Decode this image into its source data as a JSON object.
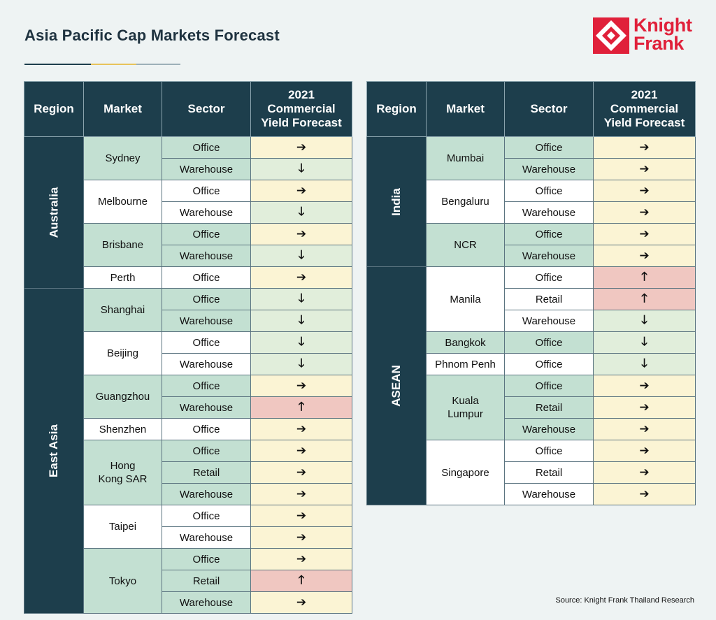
{
  "title": "Asia Pacific Cap Markets Forecast",
  "source": "Source: Knight Frank Thailand Research",
  "logo": {
    "line1": "Knight",
    "line2": "Frank",
    "name": "knight-frank-logo"
  },
  "colors": {
    "header_bg": "#1d3e4c",
    "brand_red": "#e0203a",
    "market_green": "#c3e0d2",
    "cell_stable": "#fbf4d4",
    "cell_compress": "#e1eedb",
    "cell_expand": "#f0c7c1",
    "rule": [
      "#1d3e4c",
      "#e8c35a",
      "#9db0b8"
    ]
  },
  "chart_data": {
    "type": "table",
    "columns": [
      "Region",
      "Market",
      "Sector",
      "2021 Commercial Yield Forecast"
    ],
    "symbols": {
      "stable": "➔",
      "compress": "🡓",
      "expand": "🡑"
    },
    "tables": [
      {
        "regions": [
          {
            "name": "Australia",
            "markets": [
              {
                "name": "Sydney",
                "rows": [
                  {
                    "sector": "Office",
                    "forecast": "stable"
                  },
                  {
                    "sector": "Warehouse",
                    "forecast": "compress"
                  }
                ]
              },
              {
                "name": "Melbourne",
                "rows": [
                  {
                    "sector": "Office",
                    "forecast": "stable"
                  },
                  {
                    "sector": "Warehouse",
                    "forecast": "compress"
                  }
                ]
              },
              {
                "name": "Brisbane",
                "rows": [
                  {
                    "sector": "Office",
                    "forecast": "stable"
                  },
                  {
                    "sector": "Warehouse",
                    "forecast": "compress"
                  }
                ]
              },
              {
                "name": "Perth",
                "rows": [
                  {
                    "sector": "Office",
                    "forecast": "stable"
                  }
                ]
              }
            ]
          },
          {
            "name": "East Asia",
            "markets": [
              {
                "name": "Shanghai",
                "rows": [
                  {
                    "sector": "Office",
                    "forecast": "compress"
                  },
                  {
                    "sector": "Warehouse",
                    "forecast": "compress"
                  }
                ]
              },
              {
                "name": "Beijing",
                "rows": [
                  {
                    "sector": "Office",
                    "forecast": "compress"
                  },
                  {
                    "sector": "Warehouse",
                    "forecast": "compress"
                  }
                ]
              },
              {
                "name": "Guangzhou",
                "rows": [
                  {
                    "sector": "Office",
                    "forecast": "stable"
                  },
                  {
                    "sector": "Warehouse",
                    "forecast": "expand"
                  }
                ]
              },
              {
                "name": "Shenzhen",
                "rows": [
                  {
                    "sector": "Office",
                    "forecast": "stable"
                  }
                ]
              },
              {
                "name": "Hong Kong SAR",
                "rows": [
                  {
                    "sector": "Office",
                    "forecast": "stable"
                  },
                  {
                    "sector": "Retail",
                    "forecast": "stable"
                  },
                  {
                    "sector": "Warehouse",
                    "forecast": "stable"
                  }
                ]
              },
              {
                "name": "Taipei",
                "rows": [
                  {
                    "sector": "Office",
                    "forecast": "stable"
                  },
                  {
                    "sector": "Warehouse",
                    "forecast": "stable"
                  }
                ]
              },
              {
                "name": "Tokyo",
                "rows": [
                  {
                    "sector": "Office",
                    "forecast": "stable"
                  },
                  {
                    "sector": "Retail",
                    "forecast": "expand"
                  },
                  {
                    "sector": "Warehouse",
                    "forecast": "stable"
                  }
                ]
              }
            ]
          }
        ]
      },
      {
        "regions": [
          {
            "name": "India",
            "markets": [
              {
                "name": "Mumbai",
                "rows": [
                  {
                    "sector": "Office",
                    "forecast": "stable"
                  },
                  {
                    "sector": "Warehouse",
                    "forecast": "stable"
                  }
                ]
              },
              {
                "name": "Bengaluru",
                "rows": [
                  {
                    "sector": "Office",
                    "forecast": "stable"
                  },
                  {
                    "sector": "Warehouse",
                    "forecast": "stable"
                  }
                ]
              },
              {
                "name": "NCR",
                "rows": [
                  {
                    "sector": "Office",
                    "forecast": "stable"
                  },
                  {
                    "sector": "Warehouse",
                    "forecast": "stable"
                  }
                ]
              }
            ]
          },
          {
            "name": "ASEAN",
            "markets": [
              {
                "name": "Manila",
                "rows": [
                  {
                    "sector": "Office",
                    "forecast": "expand"
                  },
                  {
                    "sector": "Retail",
                    "forecast": "expand"
                  },
                  {
                    "sector": "Warehouse",
                    "forecast": "compress"
                  }
                ]
              },
              {
                "name": "Bangkok",
                "rows": [
                  {
                    "sector": "Office",
                    "forecast": "compress"
                  }
                ]
              },
              {
                "name": "Phnom Penh",
                "rows": [
                  {
                    "sector": "Office",
                    "forecast": "compress"
                  }
                ]
              },
              {
                "name": "Kuala Lumpur",
                "rows": [
                  {
                    "sector": "Office",
                    "forecast": "stable"
                  },
                  {
                    "sector": "Retail",
                    "forecast": "stable"
                  },
                  {
                    "sector": "Warehouse",
                    "forecast": "stable"
                  }
                ]
              },
              {
                "name": "Singapore",
                "rows": [
                  {
                    "sector": "Office",
                    "forecast": "stable"
                  },
                  {
                    "sector": "Retail",
                    "forecast": "stable"
                  },
                  {
                    "sector": "Warehouse",
                    "forecast": "stable"
                  }
                ]
              }
            ]
          }
        ]
      }
    ]
  }
}
